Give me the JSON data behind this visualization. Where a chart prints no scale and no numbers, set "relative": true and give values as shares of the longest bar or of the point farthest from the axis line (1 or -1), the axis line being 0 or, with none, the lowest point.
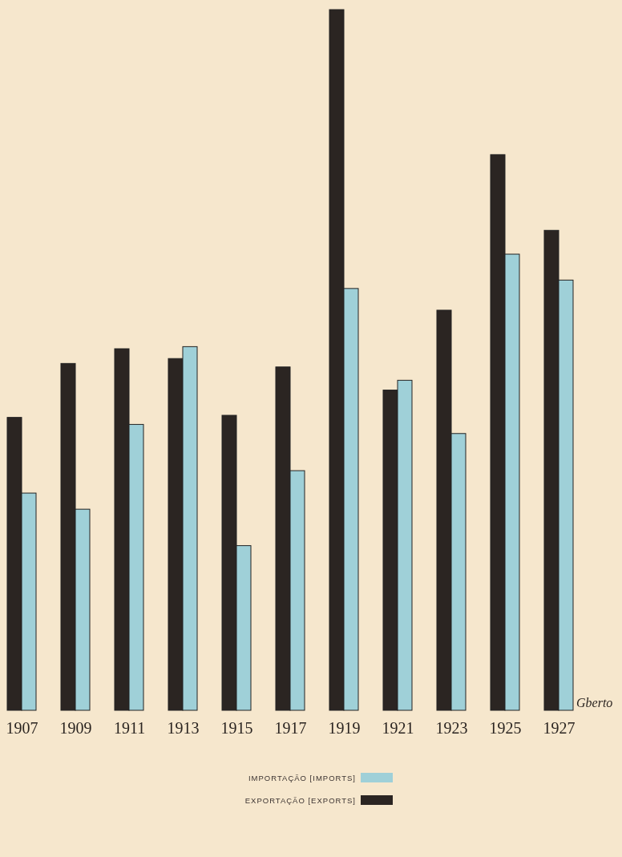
{
  "chart_data": {
    "type": "bar",
    "relative": true,
    "categories": [
      "1907",
      "1909",
      "1911",
      "1913",
      "1915",
      "1917",
      "1919",
      "1921",
      "1923",
      "1925",
      "1927"
    ],
    "series": [
      {
        "name": "EXPORTAÇÃO [EXPORTS]",
        "color": "#2b2522",
        "values": [
          0.418,
          0.495,
          0.516,
          0.502,
          0.421,
          0.49,
          1,
          0.457,
          0.571,
          0.793,
          0.685
        ]
      },
      {
        "name": "IMPORTAÇÃO [IMPORTS]",
        "color": "#9fd0d8",
        "values": [
          0.31,
          0.287,
          0.408,
          0.519,
          0.235,
          0.342,
          0.602,
          0.471,
          0.395,
          0.651,
          0.614
        ]
      }
    ],
    "legend": "bottom",
    "annotations": [
      "Gberto"
    ]
  }
}
